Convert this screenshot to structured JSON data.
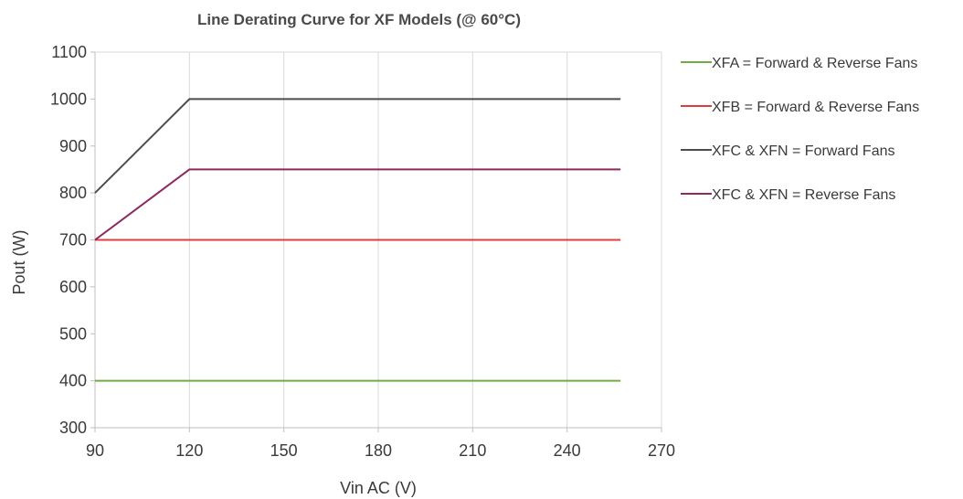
{
  "chart_data": {
    "type": "line",
    "title": "Line Derating Curve for XF Models (@ 60°C)",
    "xlabel": "Vin AC (V)",
    "ylabel": "Pout (W)",
    "xlim": [
      90,
      270
    ],
    "ylim": [
      300,
      1100
    ],
    "xticks": [
      90,
      120,
      150,
      180,
      210,
      240,
      270
    ],
    "yticks": [
      300,
      400,
      500,
      600,
      700,
      800,
      900,
      1000,
      1100
    ],
    "grid": "vertical",
    "legend_position": "right",
    "series": [
      {
        "name": "XFA = Forward & Reverse Fans",
        "color": "#70ad47",
        "x": [
          90,
          257
        ],
        "y": [
          400,
          400
        ]
      },
      {
        "name": "XFB = Forward & Reverse Fans",
        "color": "#e03c3c",
        "x": [
          90,
          257
        ],
        "y": [
          700,
          700
        ]
      },
      {
        "name": "XFC & XFN = Forward Fans",
        "color": "#4d4d4d",
        "x": [
          90,
          120,
          257
        ],
        "y": [
          800,
          1000,
          1000
        ]
      },
      {
        "name": "XFC & XFN = Reverse Fans",
        "color": "#8e2a5e",
        "x": [
          90,
          120,
          257
        ],
        "y": [
          700,
          850,
          850
        ]
      }
    ]
  }
}
